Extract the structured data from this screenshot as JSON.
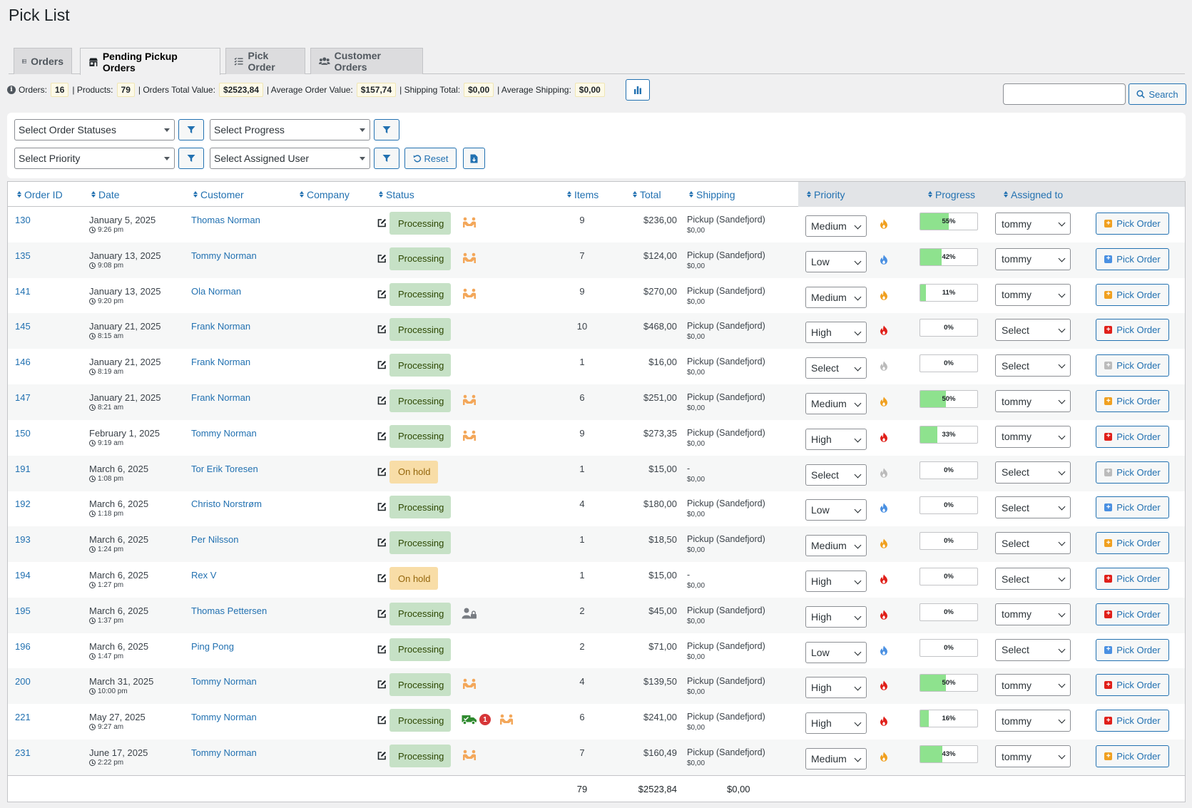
{
  "page": {
    "title": "Pick List"
  },
  "tabs": [
    {
      "label": "Orders",
      "active": false
    },
    {
      "label": "Pending Pickup Orders",
      "active": true
    },
    {
      "label": "Pick Order",
      "active": false
    },
    {
      "label": "Customer Orders",
      "active": false
    }
  ],
  "stats": {
    "orders_label": "Orders:",
    "orders": "16",
    "products_label": "| Products:",
    "products": "79",
    "total_value_label": "| Orders Total Value:",
    "total_value": "$2523,84",
    "avg_value_label": "| Average Order Value:",
    "avg_value": "$157,74",
    "shipping_total_label": "| Shipping Total:",
    "shipping_total": "$0,00",
    "avg_shipping_label": "| Average Shipping:",
    "avg_shipping": "$0,00"
  },
  "search": {
    "button_label": "Search",
    "value": ""
  },
  "filters": {
    "order_statuses": "Select Order Statuses",
    "progress": "Select Progress",
    "priority": "Select Priority",
    "assigned_user": "Select Assigned User",
    "reset_label": "Reset"
  },
  "columns": {
    "order_id": "Order ID",
    "date": "Date",
    "customer": "Customer",
    "company": "Company",
    "status": "Status",
    "items": "Items",
    "total": "Total",
    "shipping": "Shipping",
    "priority": "Priority",
    "progress": "Progress",
    "assigned_to": "Assigned to"
  },
  "colors": {
    "link": "#2271b1",
    "processing_bg": "#c6e1c6",
    "onhold_bg": "#f8dda7",
    "progress_fill": "#8ee28e",
    "priority_high": "#e0201a",
    "priority_medium": "#f0a020",
    "priority_low": "#4a90e2",
    "priority_none": "#bbbbbb"
  },
  "orders": [
    {
      "id": "130",
      "date": "January 5, 2025",
      "time": "9:26 pm",
      "customer": "Thomas Norman",
      "status": "Processing",
      "icon": "pickup-people-icon",
      "badge": "",
      "items": "9",
      "total": "$236,00",
      "shipping": "Pickup (Sandefjord)",
      "shipping_cost": "$0,00",
      "priority": "Medium",
      "progress": "55%",
      "progress_value": 55,
      "assigned": "tommy",
      "pick_label": "Pick Order"
    },
    {
      "id": "135",
      "date": "January 13, 2025",
      "time": "9:08 pm",
      "customer": "Tommy Norman",
      "status": "Processing",
      "icon": "pickup-people-icon",
      "badge": "",
      "items": "7",
      "total": "$124,00",
      "shipping": "Pickup (Sandefjord)",
      "shipping_cost": "$0,00",
      "priority": "Low",
      "progress": "42%",
      "progress_value": 42,
      "assigned": "tommy",
      "pick_label": "Pick Order"
    },
    {
      "id": "141",
      "date": "January 13, 2025",
      "time": "9:20 pm",
      "customer": "Ola Norman",
      "status": "Processing",
      "icon": "pickup-people-icon",
      "badge": "",
      "items": "9",
      "total": "$270,00",
      "shipping": "Pickup (Sandefjord)",
      "shipping_cost": "$0,00",
      "priority": "Medium",
      "progress": "11%",
      "progress_value": 11,
      "assigned": "tommy",
      "pick_label": "Pick Order"
    },
    {
      "id": "145",
      "date": "January 21, 2025",
      "time": "8:15 am",
      "customer": "Frank Norman",
      "status": "Processing",
      "icon": "",
      "badge": "",
      "items": "10",
      "total": "$468,00",
      "shipping": "Pickup (Sandefjord)",
      "shipping_cost": "$0,00",
      "priority": "High",
      "progress": "0%",
      "progress_value": 0,
      "assigned": "Select",
      "pick_label": "Pick Order"
    },
    {
      "id": "146",
      "date": "January 21, 2025",
      "time": "8:19 am",
      "customer": "Frank Norman",
      "status": "Processing",
      "icon": "",
      "badge": "",
      "items": "1",
      "total": "$16,00",
      "shipping": "Pickup (Sandefjord)",
      "shipping_cost": "$0,00",
      "priority": "Select",
      "progress": "0%",
      "progress_value": 0,
      "assigned": "Select",
      "pick_label": "Pick Order"
    },
    {
      "id": "147",
      "date": "January 21, 2025",
      "time": "8:21 am",
      "customer": "Frank Norman",
      "status": "Processing",
      "icon": "pickup-people-icon",
      "badge": "",
      "items": "6",
      "total": "$251,00",
      "shipping": "Pickup (Sandefjord)",
      "shipping_cost": "$0,00",
      "priority": "Medium",
      "progress": "50%",
      "progress_value": 50,
      "assigned": "tommy",
      "pick_label": "Pick Order"
    },
    {
      "id": "150",
      "date": "February 1, 2025",
      "time": "9:19 am",
      "customer": "Tommy Norman",
      "status": "Processing",
      "icon": "pickup-people-icon",
      "badge": "",
      "items": "9",
      "total": "$273,35",
      "shipping": "Pickup (Sandefjord)",
      "shipping_cost": "$0,00",
      "priority": "High",
      "progress": "33%",
      "progress_value": 33,
      "assigned": "tommy",
      "pick_label": "Pick Order"
    },
    {
      "id": "191",
      "date": "March 6, 2025",
      "time": "1:08 pm",
      "customer": "Tor Erik Toresen",
      "status": "On hold",
      "icon": "",
      "badge": "",
      "items": "1",
      "total": "$15,00",
      "shipping": "-",
      "shipping_cost": "$0,00",
      "priority": "Select",
      "progress": "0%",
      "progress_value": 0,
      "assigned": "Select",
      "pick_label": "Pick Order"
    },
    {
      "id": "192",
      "date": "March 6, 2025",
      "time": "1:18 pm",
      "customer": "Christo Norstrøm",
      "status": "Processing",
      "icon": "",
      "badge": "",
      "items": "4",
      "total": "$180,00",
      "shipping": "Pickup (Sandefjord)",
      "shipping_cost": "$0,00",
      "priority": "Low",
      "progress": "0%",
      "progress_value": 0,
      "assigned": "Select",
      "pick_label": "Pick Order"
    },
    {
      "id": "193",
      "date": "March 6, 2025",
      "time": "1:24 pm",
      "customer": "Per Nilsson",
      "status": "Processing",
      "icon": "",
      "badge": "",
      "items": "1",
      "total": "$18,50",
      "shipping": "Pickup (Sandefjord)",
      "shipping_cost": "$0,00",
      "priority": "Medium",
      "progress": "0%",
      "progress_value": 0,
      "assigned": "Select",
      "pick_label": "Pick Order"
    },
    {
      "id": "194",
      "date": "March 6, 2025",
      "time": "1:27 pm",
      "customer": "Rex V",
      "status": "On hold",
      "icon": "",
      "badge": "",
      "items": "1",
      "total": "$15,00",
      "shipping": "-",
      "shipping_cost": "$0,00",
      "priority": "High",
      "progress": "0%",
      "progress_value": 0,
      "assigned": "Select",
      "pick_label": "Pick Order"
    },
    {
      "id": "195",
      "date": "March 6, 2025",
      "time": "1:37 pm",
      "customer": "Thomas Pettersen",
      "status": "Processing",
      "icon": "user-lock-icon",
      "badge": "",
      "items": "2",
      "total": "$45,00",
      "shipping": "Pickup (Sandefjord)",
      "shipping_cost": "$0,00",
      "priority": "High",
      "progress": "0%",
      "progress_value": 0,
      "assigned": "tommy",
      "pick_label": "Pick Order"
    },
    {
      "id": "196",
      "date": "March 6, 2025",
      "time": "1:47 pm",
      "customer": "Ping Pong",
      "status": "Processing",
      "icon": "",
      "badge": "",
      "items": "2",
      "total": "$71,00",
      "shipping": "Pickup (Sandefjord)",
      "shipping_cost": "$0,00",
      "priority": "Low",
      "progress": "0%",
      "progress_value": 0,
      "assigned": "Select",
      "pick_label": "Pick Order"
    },
    {
      "id": "200",
      "date": "March 31, 2025",
      "time": "10:00 pm",
      "customer": "Tommy Norman",
      "status": "Processing",
      "icon": "pickup-people-icon",
      "badge": "",
      "items": "4",
      "total": "$139,50",
      "shipping": "Pickup (Sandefjord)",
      "shipping_cost": "$0,00",
      "priority": "High",
      "progress": "50%",
      "progress_value": 50,
      "assigned": "tommy",
      "pick_label": "Pick Order"
    },
    {
      "id": "221",
      "date": "May 27, 2025",
      "time": "9:27 am",
      "customer": "Tommy Norman",
      "status": "Processing",
      "icon": "truck-icon",
      "badge": "1",
      "items": "6",
      "total": "$241,00",
      "shipping": "Pickup (Sandefjord)",
      "shipping_cost": "$0,00",
      "priority": "High",
      "progress": "16%",
      "progress_value": 16,
      "assigned": "tommy",
      "pick_label": "Pick Order"
    },
    {
      "id": "231",
      "date": "June 17, 2025",
      "time": "2:22 pm",
      "customer": "Tommy Norman",
      "status": "Processing",
      "icon": "pickup-people-icon",
      "badge": "",
      "items": "7",
      "total": "$160,49",
      "shipping": "Pickup (Sandefjord)",
      "shipping_cost": "$0,00",
      "priority": "Medium",
      "progress": "43%",
      "progress_value": 43,
      "assigned": "tommy",
      "pick_label": "Pick Order"
    }
  ],
  "totals": {
    "items": "79",
    "total": "$2523,84",
    "shipping": "$0,00"
  }
}
